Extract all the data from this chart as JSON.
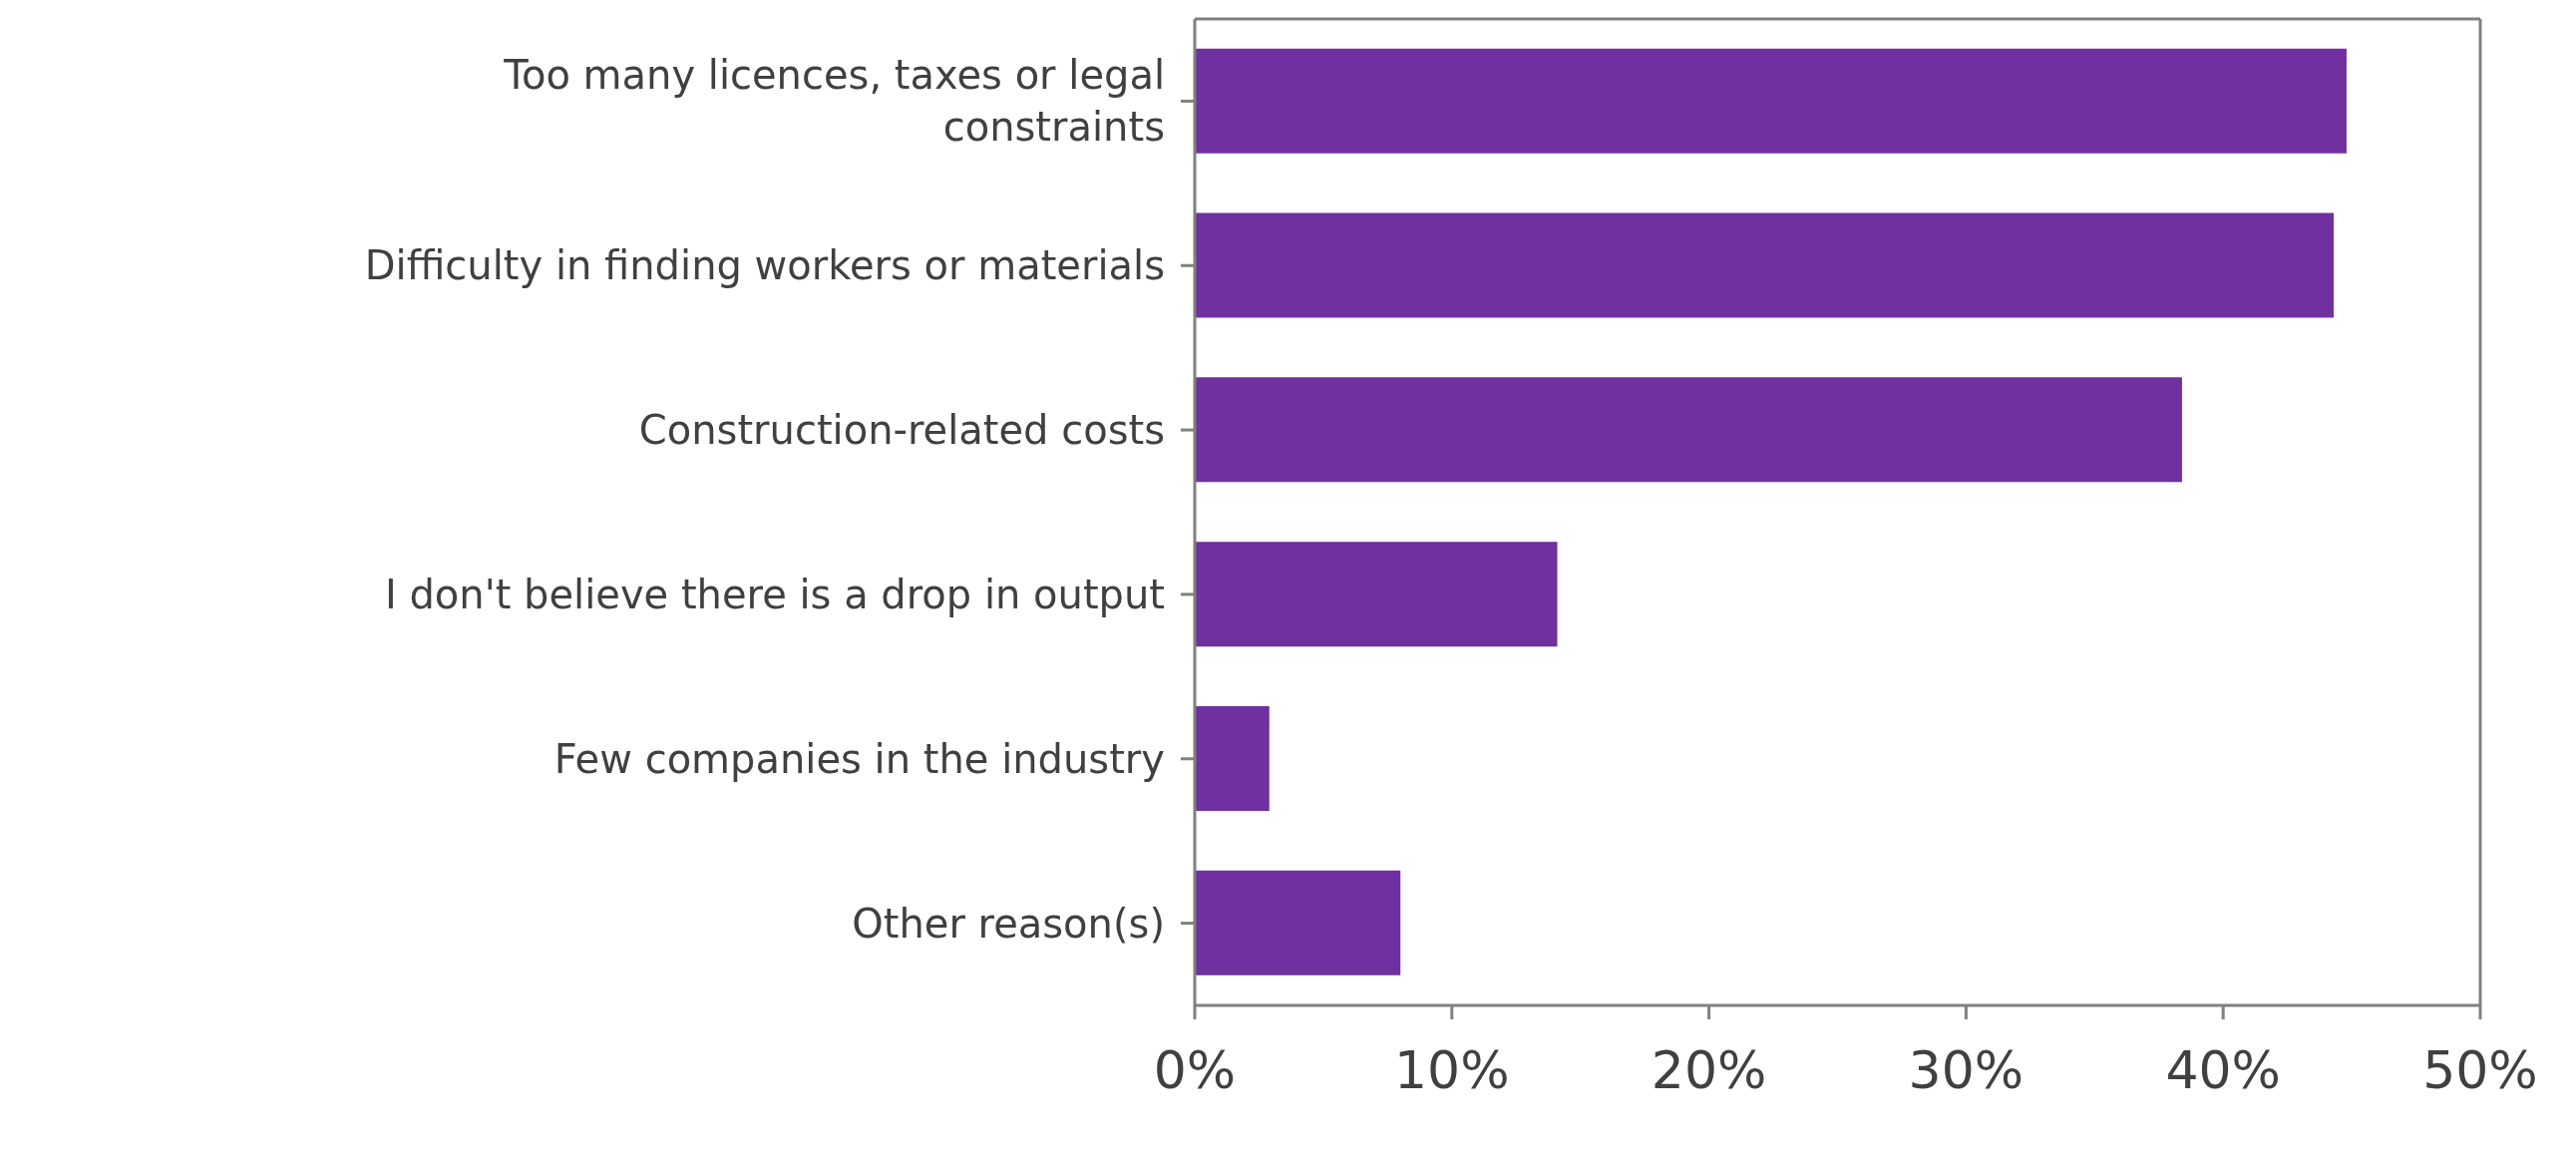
{
  "chart_data": {
    "type": "bar",
    "orientation": "horizontal",
    "categories": [
      "Too many licences, taxes or legal constraints",
      "Difficulty in finding workers or materials",
      "Construction-related costs",
      "I don't believe there is a drop in output",
      "Few companies in the industry",
      "Other reason(s)"
    ],
    "values": [
      44.8,
      44.3,
      38.4,
      14.1,
      2.9,
      8.0
    ],
    "color": "#7030a0",
    "xlim": [
      0,
      50
    ],
    "xticks": [
      {
        "value": 0,
        "label": "0%"
      },
      {
        "value": 10,
        "label": "10%"
      },
      {
        "value": 20,
        "label": "20%"
      },
      {
        "value": 30,
        "label": "30%"
      },
      {
        "value": 40,
        "label": "40%"
      },
      {
        "value": 50,
        "label": "50%"
      }
    ],
    "grid": false
  }
}
